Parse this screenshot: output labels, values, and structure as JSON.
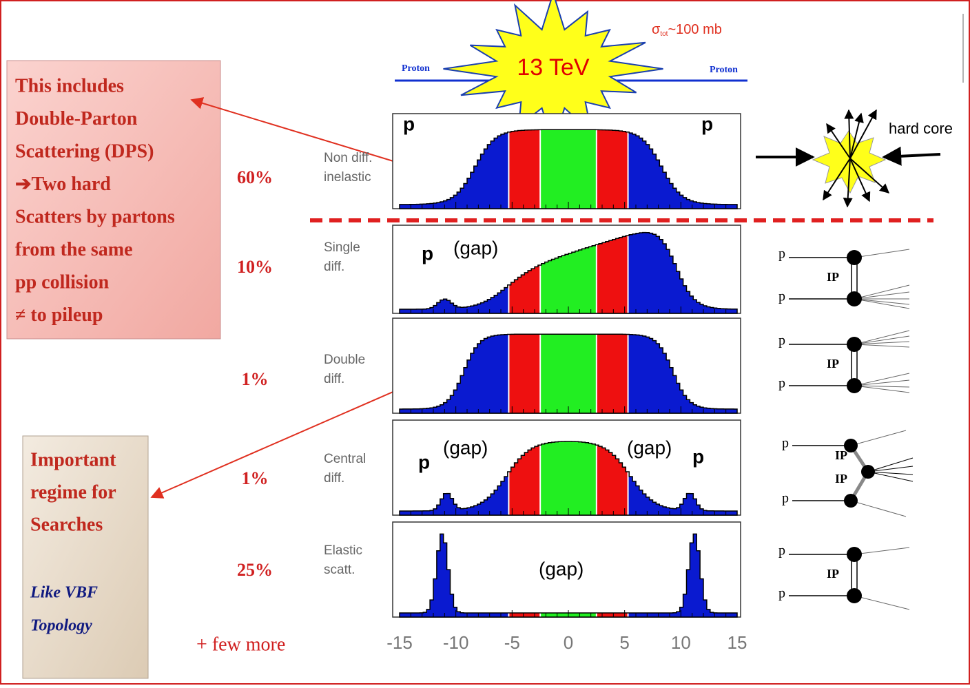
{
  "energy_label": "13 TeV",
  "cross_section": {
    "symbol": "σ",
    "subscript": "tot",
    "text": "~100 mb"
  },
  "beam": {
    "left": "Proton",
    "right": "Proton"
  },
  "hard_core_label": "hard core",
  "proton_symbol": "p",
  "pomeron_symbol": "IP",
  "gap_label": "(gap)",
  "notes": [
    {
      "lines": [
        "This includes",
        "Double-Parton",
        "Scattering (DPS)",
        "➔Two hard",
        "Scatters by partons",
        "from  the same",
        "pp collision",
        "≠ to  pileup"
      ]
    },
    {
      "lines": [
        "Important",
        "regime for",
        "Searches"
      ],
      "italic_lines": [
        "Like VBF",
        "Topology"
      ]
    }
  ],
  "processes": [
    {
      "fraction": "60%",
      "name_lines": [
        "Non diff.",
        "inelastic"
      ]
    },
    {
      "fraction": "10%",
      "name_lines": [
        "Single",
        "diff."
      ]
    },
    {
      "fraction": "1%",
      "name_lines": [
        "Double",
        "diff."
      ]
    },
    {
      "fraction": "1%",
      "name_lines": [
        "Central",
        "diff."
      ]
    },
    {
      "fraction": "25%",
      "name_lines": [
        "Elastic",
        "scatt."
      ]
    }
  ],
  "axis": {
    "ticks": [
      -15,
      -10,
      -5,
      0,
      5,
      10,
      15
    ]
  },
  "footer": "+ few more"
}
